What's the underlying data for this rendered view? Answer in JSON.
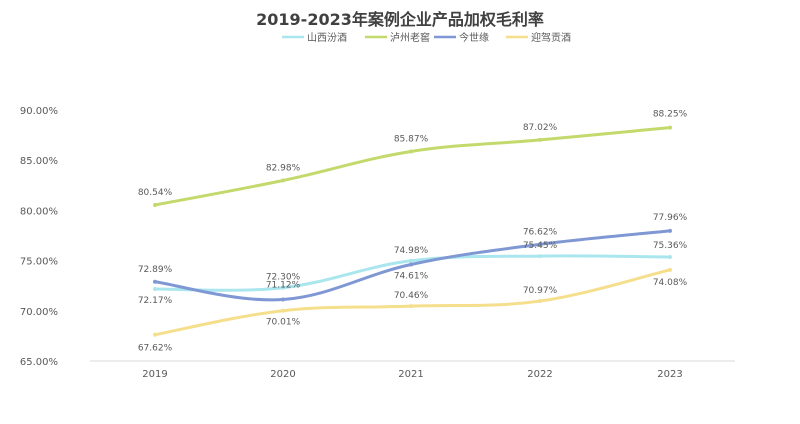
{
  "chart_data": {
    "type": "line",
    "title": "2019-2023年案例企业产品加权毛利率",
    "categories": [
      "2019",
      "2020",
      "2021",
      "2022",
      "2023"
    ],
    "ylim": [
      65,
      90
    ],
    "yticks": [
      "65.00%",
      "70.00%",
      "75.00%",
      "80.00%",
      "85.00%",
      "90.00%"
    ],
    "grid": false,
    "legend_position": "top",
    "series": [
      {
        "name": "山西汾酒",
        "color": "#a9e6ee",
        "values": [
          72.17,
          72.3,
          74.98,
          75.45,
          75.36
        ],
        "labels": [
          "72.17%",
          "72.30%",
          "74.98%",
          "75.45%",
          "75.36%"
        ]
      },
      {
        "name": "泸州老窖",
        "color": "#c3d96b",
        "values": [
          80.54,
          82.98,
          85.87,
          87.02,
          88.25
        ],
        "labels": [
          "80.54%",
          "82.98%",
          "85.87%",
          "87.02%",
          "88.25%"
        ]
      },
      {
        "name": "今世缘",
        "color": "#7f98d4",
        "values": [
          72.89,
          71.12,
          74.61,
          76.62,
          77.96
        ],
        "labels": [
          "72.89%",
          "71.12%",
          "74.61%",
          "76.62%",
          "77.96%"
        ]
      },
      {
        "name": "迎驾贡酒",
        "color": "#f5de8c",
        "values": [
          67.62,
          70.01,
          70.46,
          70.97,
          74.08
        ],
        "labels": [
          "67.62%",
          "70.01%",
          "70.46%",
          "70.97%",
          "74.08%"
        ]
      }
    ]
  }
}
